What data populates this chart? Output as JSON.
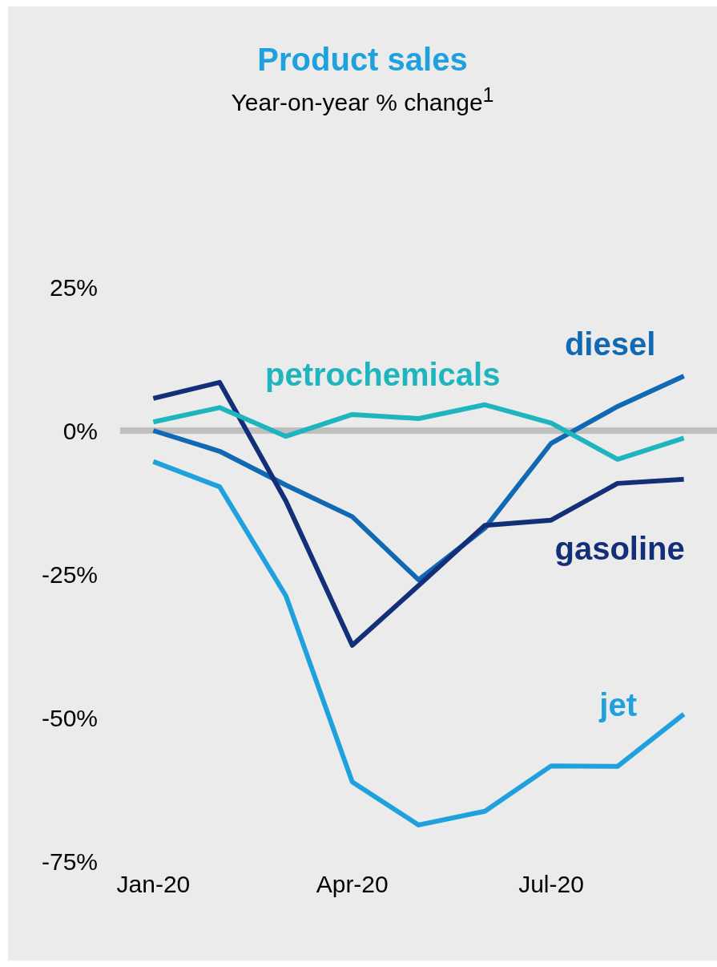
{
  "chart_data": {
    "type": "line",
    "title": "Product sales",
    "subtitle": "Year-on-year % change$^{1}$",
    "categories": [
      "Jan-20",
      null,
      null,
      "Apr-20",
      null,
      null,
      "Jul-20",
      null,
      null
    ],
    "ylim": [
      -75,
      25
    ],
    "yticks": [
      {
        "value": 25,
        "label": "25%"
      },
      {
        "value": 0,
        "label": "0%"
      },
      {
        "value": -25,
        "label": "-25%"
      },
      {
        "value": -50,
        "label": "-50%"
      },
      {
        "value": -75,
        "label": "-75%"
      }
    ],
    "ref_lines": [
      {
        "axis": "y",
        "value": 0,
        "color": "#bfbfbf"
      }
    ],
    "series": [
      {
        "name": "diesel",
        "color": "#1169b3",
        "values": [
          0,
          -3.6,
          -9.5,
          -15,
          -26,
          -17,
          -2.2,
          4.2,
          9.5
        ]
      },
      {
        "name": "gasoline",
        "color": "#132f78",
        "values": [
          5.6,
          8.4,
          -12.3,
          -37.4,
          -27,
          -16.5,
          -15.6,
          -9.2,
          -8.5
        ]
      },
      {
        "name": "petrochemicals",
        "color": "#1fb5be",
        "values": [
          1.5,
          4,
          -1,
          2.8,
          2.1,
          4.5,
          1.3,
          -5,
          -1.3
        ]
      },
      {
        "name": "jet",
        "color": "#1ea1dc",
        "values": [
          -5.4,
          -9.8,
          -28.8,
          -61.2,
          -68.7,
          -66.3,
          -58.4,
          -58.5,
          -49.4
        ]
      }
    ]
  }
}
